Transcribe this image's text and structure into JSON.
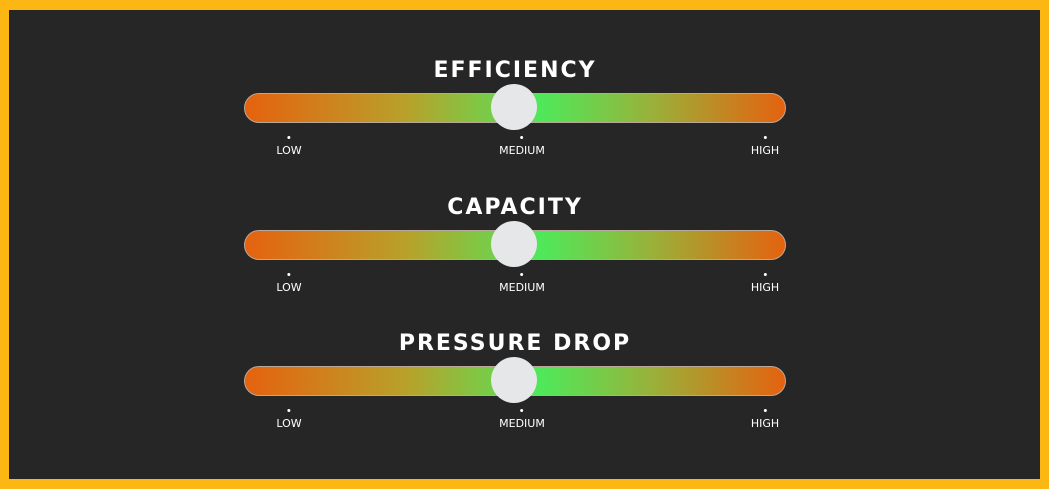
{
  "colors": {
    "frame": "#fdb714",
    "background": "#262626",
    "low": "#e5620f",
    "mid": "#4fe85a",
    "knob": "#e6e7e9"
  },
  "gauges": [
    {
      "title": "EFFICIENCY",
      "value": 0.5,
      "labels": [
        "LOW",
        "MEDIUM",
        "HIGH"
      ]
    },
    {
      "title": "CAPACITY",
      "value": 0.5,
      "labels": [
        "LOW",
        "MEDIUM",
        "HIGH"
      ]
    },
    {
      "title": "PRESSURE DROP",
      "value": 0.5,
      "labels": [
        "LOW",
        "MEDIUM",
        "HIGH"
      ]
    }
  ]
}
